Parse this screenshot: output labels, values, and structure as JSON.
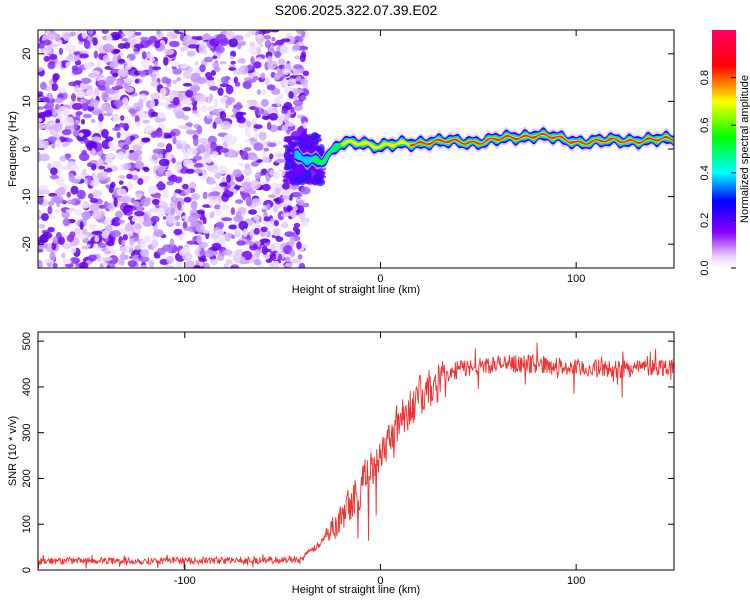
{
  "figure": {
    "title": "S206.2025.322.07.39.E02"
  },
  "chart_data": [
    {
      "type": "heatmap",
      "title": "",
      "xlabel": "Height of straight line (km)",
      "ylabel": "Frequency (Hz)",
      "xlim": [
        -175,
        150
      ],
      "ylim": [
        -25,
        25
      ],
      "xticks": [
        -100,
        0,
        100
      ],
      "yticks": [
        -20,
        -10,
        0,
        10,
        20
      ],
      "colorbar": {
        "label": "Normalized spectral amplitude",
        "range": [
          0,
          1
        ],
        "ticks": [
          0.0,
          0.2,
          0.4,
          0.6,
          0.8
        ],
        "tick_labels": [
          "0.0",
          "0.2",
          "0.4",
          "0.6",
          "0.8"
        ],
        "colormap": [
          "#ffffff",
          "#8800ff",
          "#0000ff",
          "#00ffff",
          "#00ff00",
          "#ffff00",
          "#ff0000",
          "#ff0066"
        ]
      },
      "features": {
        "noise_region_x": [
          -175,
          -42
        ],
        "signal_line_freq": [
          {
            "x": -45,
            "y": -1.5
          },
          {
            "x": -30,
            "y": -2.5
          },
          {
            "x": -20,
            "y": 1.0
          },
          {
            "x": -10,
            "y": 1.5
          },
          {
            "x": 0,
            "y": 0.5
          },
          {
            "x": 10,
            "y": 1.0
          },
          {
            "x": 25,
            "y": 1.5
          },
          {
            "x": 50,
            "y": 1.5
          },
          {
            "x": 80,
            "y": 3.0
          },
          {
            "x": 100,
            "y": 1.5
          },
          {
            "x": 150,
            "y": 2.0
          }
        ]
      }
    },
    {
      "type": "line",
      "title": "",
      "xlabel": "Height of straight line (km)",
      "ylabel": "SNR (10 * v/v)",
      "xlim": [
        -175,
        150
      ],
      "ylim": [
        0,
        520
      ],
      "xticks": [
        -100,
        0,
        100
      ],
      "yticks": [
        0,
        100,
        200,
        300,
        400,
        500
      ],
      "series": [
        {
          "name": "SNR",
          "color": "#ee3333",
          "trend": {
            "x": [
              -175,
              -100,
              -50,
              -40,
              -30,
              -20,
              -10,
              0,
              10,
              20,
              30,
              40,
              60,
              80,
              100,
              120,
              150
            ],
            "y": [
              20,
              20,
              22,
              25,
              60,
              130,
              180,
              260,
              330,
              380,
              410,
              440,
              450,
              450,
              440,
              440,
              445
            ]
          },
          "noise_amplitude": 20
        }
      ]
    }
  ]
}
